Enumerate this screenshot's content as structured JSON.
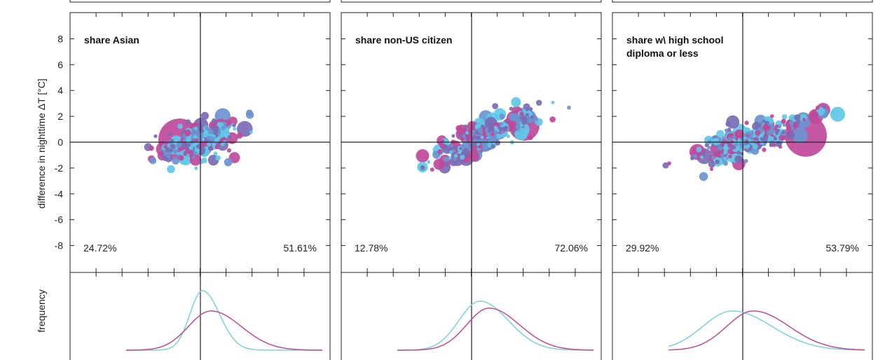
{
  "figure": {
    "ylabel_scatter": "difference in nighttime ΔT [°C]",
    "ylabel_freq": "frequency",
    "y_ticks": [
      "8",
      "6",
      "4",
      "2",
      "0",
      "-2",
      "-4",
      "-6",
      "-8"
    ]
  },
  "colors": {
    "magenta": "#c0489a",
    "cyan": "#5fc8e8",
    "purple": "#7a6bb6",
    "steel": "#6b94d0",
    "freq_cyan": "#7ccfe0",
    "freq_magenta": "#c04a96"
  },
  "chart_data": [
    {
      "type": "scatter",
      "panel_label": "share Asian",
      "left_pct": "24.72%",
      "right_pct": "51.61%",
      "ylim": [
        -10,
        10
      ],
      "y_ticks": [
        8,
        6,
        4,
        2,
        0,
        -2,
        -4,
        -6,
        -8
      ],
      "center_line_x": 0.5,
      "notes": "bubble cluster centered near x=0.5, y=0"
    },
    {
      "type": "scatter",
      "panel_label": "share non-US citizen",
      "left_pct": "12.78%",
      "right_pct": "72.06%",
      "ylim": [
        -10,
        10
      ],
      "y_ticks": [
        8,
        6,
        4,
        2,
        0,
        -2,
        -4,
        -6,
        -8
      ],
      "center_line_x": 0.5
    },
    {
      "type": "scatter",
      "panel_label": "share w\\ high school diploma or less",
      "panel_label_lines": [
        "share w\\ high school",
        "diploma or less"
      ],
      "left_pct": "29.92%",
      "right_pct": "53.79%",
      "ylim": [
        -10,
        10
      ],
      "y_ticks": [
        8,
        6,
        4,
        2,
        0,
        -2,
        -4,
        -6,
        -8
      ],
      "center_line_x": 0.5
    }
  ]
}
